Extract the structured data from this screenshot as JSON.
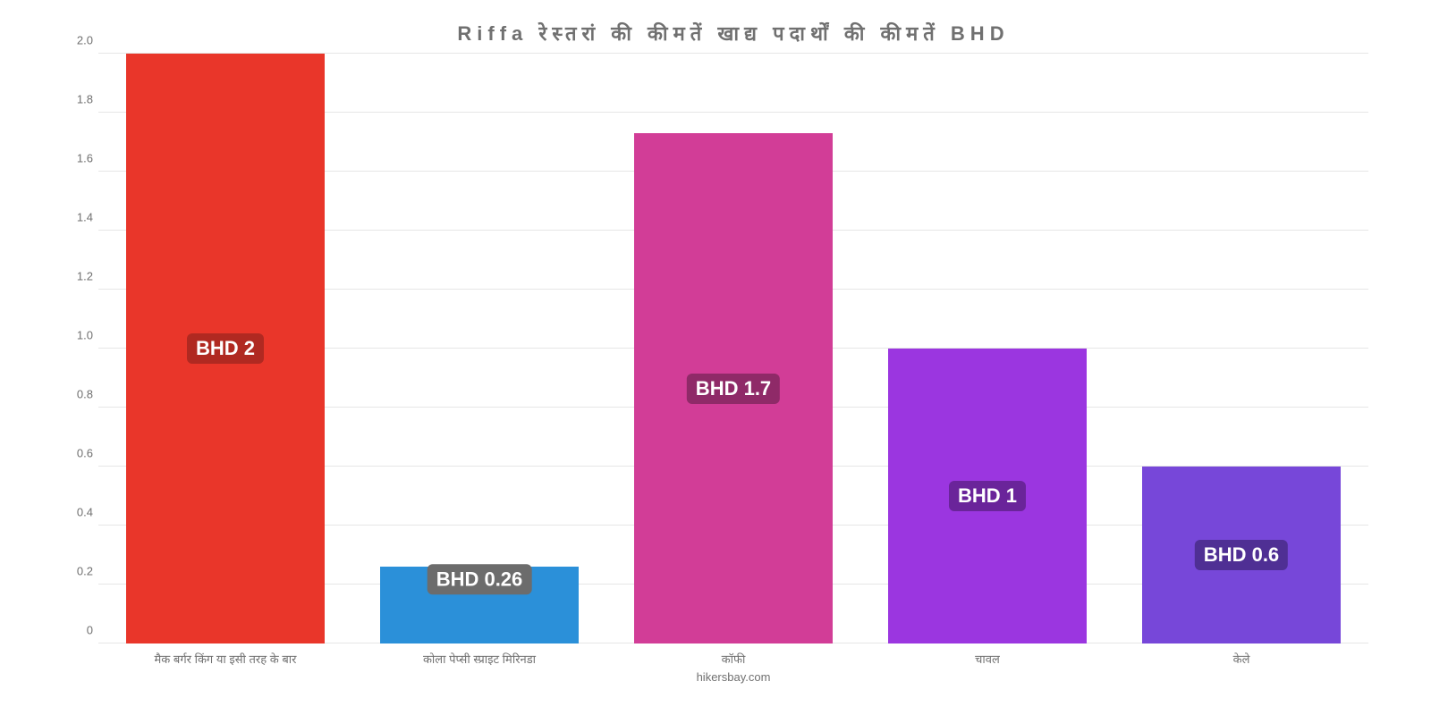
{
  "chart": {
    "type": "bar",
    "title": "Riffa रेस्तरां   की   कीमतें   खाद्य   पदार्थों   की   कीमतें   BHD",
    "title_fontsize": 22,
    "title_color": "#707070",
    "background_color": "#ffffff",
    "grid_color": "#e6e6e6",
    "axis_font_color": "#707070",
    "axis_fontsize": 13,
    "ylim": [
      0,
      2.0
    ],
    "ytick_step": 0.2,
    "yticks": [
      "0",
      "0.2",
      "0.4",
      "0.6",
      "0.8",
      "1.0",
      "1.2",
      "1.4",
      "1.6",
      "1.8",
      "2.0"
    ],
    "bar_width_pct": 78,
    "categories": [
      "मैक बर्गर किंग या इसी तरह के बार",
      "कोला पेप्सी स्प्राइट मिरिनडा",
      "कॉफी",
      "चावल",
      "केले"
    ],
    "values": [
      2.0,
      0.26,
      1.73,
      1.0,
      0.6
    ],
    "bar_colors": [
      "#e9362a",
      "#2b90d9",
      "#d23d97",
      "#9b36e0",
      "#7747d9"
    ],
    "value_labels": [
      "BHD 2",
      "BHD 0.26",
      "BHD 1.7",
      "BHD 1",
      "BHD 0.6"
    ],
    "badge_bg_colors": [
      "#b02921",
      "#6c6c6c",
      "#8f2a68",
      "#6a249a",
      "#4f2f94"
    ],
    "badge_text_color": "#ffffff",
    "badge_fontsize": 22,
    "attribution": "hikersbay.com",
    "attribution_fontsize": 13
  }
}
